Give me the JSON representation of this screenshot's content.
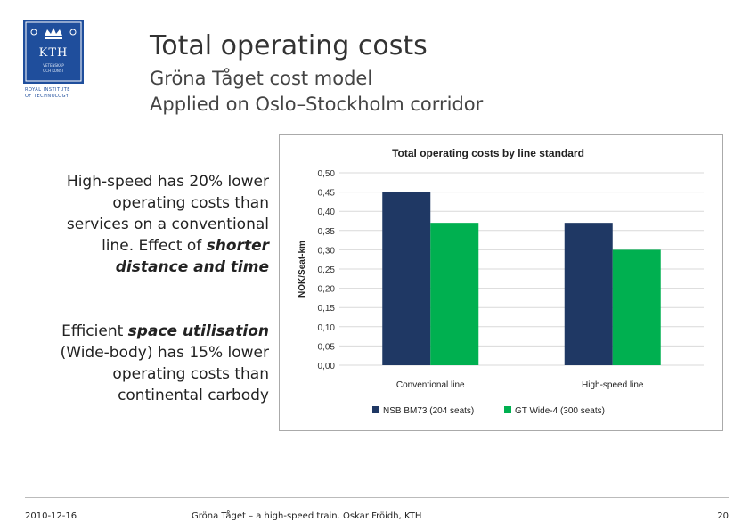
{
  "logo": {
    "wordmark": "KTH",
    "sub_line_1": "VETENSKAP",
    "sub_line_2": "OCH KONST",
    "caption_line_1": "ROYAL INSTITUTE",
    "caption_line_2": "OF TECHNOLOGY"
  },
  "slide": {
    "title": "Total operating costs",
    "subtitle_line_1": "Gröna Tåget cost model",
    "subtitle_line_2": "Applied on Oslo–Stockholm corridor"
  },
  "text_left": {
    "para1_part1": "High-speed has 20% lower operating costs than services on a conventional line. Effect of ",
    "para1_emph": "shorter distance and time",
    "para2_part1": "Efficient ",
    "para2_emph": "space utilisation",
    "para2_part2": " (Wide-body) has 15% lower operating costs than continental carbody"
  },
  "chart_data": {
    "type": "bar",
    "title": "Total operating costs by line standard",
    "xlabel": "",
    "ylabel": "NOK/Seat-km",
    "categories": [
      "Conventional line",
      "High-speed line"
    ],
    "series": [
      {
        "name": "NSB BM73 (204 seats)",
        "color": "#1f3864",
        "values": [
          0.45,
          0.37
        ]
      },
      {
        "name": "GT Wide-4 (300 seats)",
        "color": "#00b050",
        "values": [
          0.37,
          0.3
        ]
      }
    ],
    "ylim": [
      0,
      0.5
    ],
    "yticks": [
      "0,00",
      "0,05",
      "0,10",
      "0,15",
      "0,20",
      "0,25",
      "0,30",
      "0,35",
      "0,40",
      "0,45",
      "0,50"
    ],
    "grid": true,
    "legend": "bottom"
  },
  "footer": {
    "date": "2010-12-16",
    "center": "Gröna Tåget – a high-speed train. Oskar Fröidh, KTH",
    "page": "20"
  }
}
